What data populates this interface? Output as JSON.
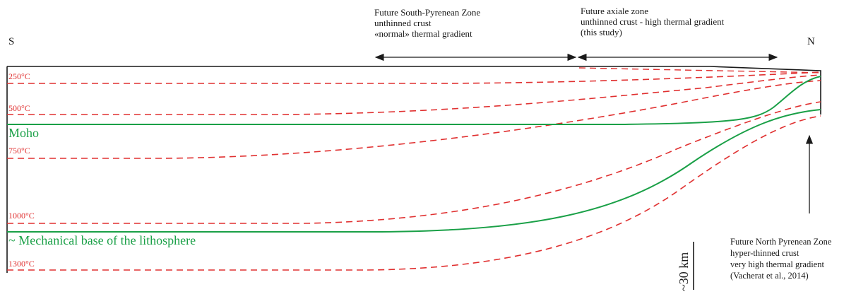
{
  "directions": {
    "south": "S",
    "north": "N"
  },
  "zones": {
    "south_pyrenean": [
      "Future South-Pyrenean Zone",
      "unthinned crust",
      "«normal» thermal gradient"
    ],
    "axiale": [
      "Future axiale zone",
      "unthinned crust - high thermal gradient",
      "(this study)"
    ],
    "north_pyrenean": [
      "Future North Pyrenean Zone",
      "hyper-thinned crust",
      "very high thermal gradient",
      "(Vacherat et al., 2014)"
    ]
  },
  "isotherms": [
    "250°C",
    "500°C",
    "750°C",
    "1000°C",
    "1300°C"
  ],
  "boundaries": {
    "moho": "Moho",
    "lithosphere_base": "~ Mechanical base of the lithosphere"
  },
  "scale": "~30 km",
  "colors": {
    "isotherm": "#e03030",
    "boundary": "#1aa047",
    "frame": "#1a1a1a"
  }
}
